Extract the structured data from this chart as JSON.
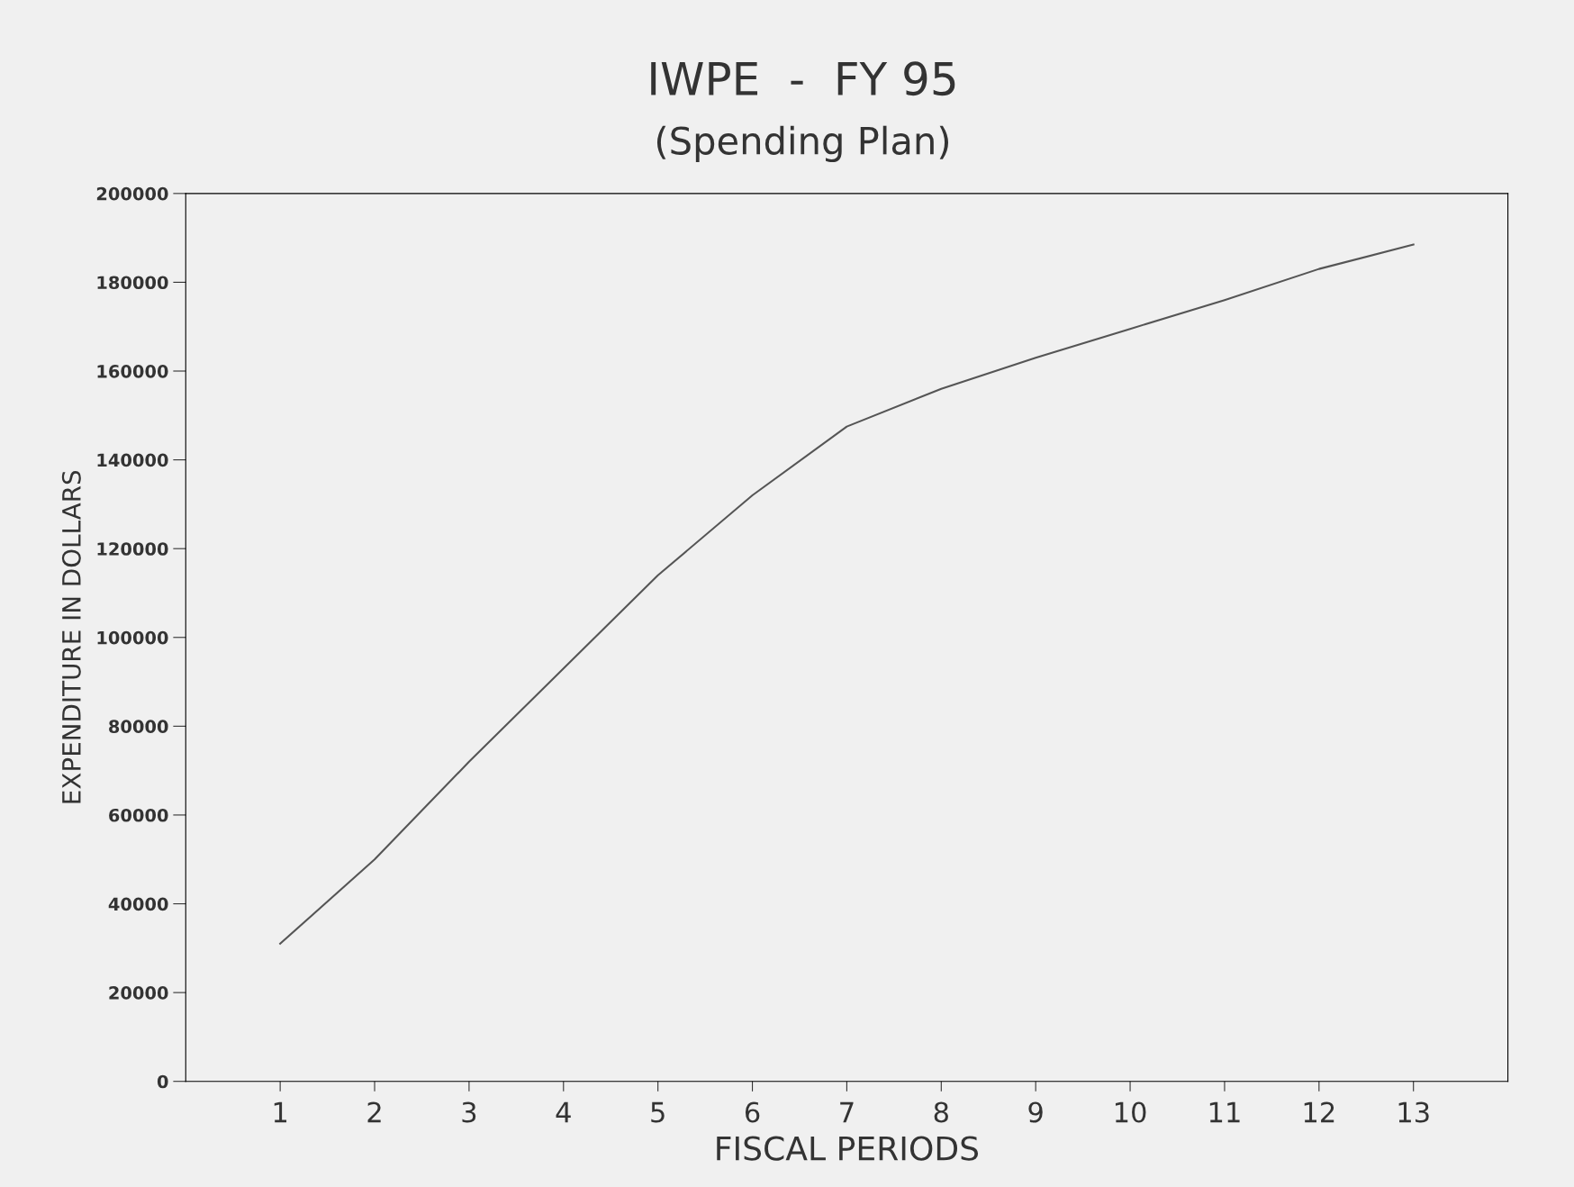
{
  "chart_data": {
    "type": "line",
    "title": "IWPE  -  FY 95",
    "subtitle": "(Spending Plan)",
    "xlabel": "FISCAL PERIODS",
    "ylabel": "EXPENDITURE IN DOLLARS",
    "x": [
      1,
      2,
      3,
      4,
      5,
      6,
      7,
      8,
      9,
      10,
      11,
      12,
      13
    ],
    "series": [
      {
        "color": "#555555",
        "values": [
          31000,
          50000,
          72000,
          93000,
          114000,
          132000,
          147500,
          156000,
          163000,
          169500,
          176000,
          183000,
          188500
        ]
      }
    ],
    "xlim": [
      0,
      14
    ],
    "xticks": [
      1,
      2,
      3,
      4,
      5,
      6,
      7,
      8,
      9,
      10,
      11,
      12,
      13
    ],
    "ylim": [
      0,
      200000
    ],
    "yticks": [
      0,
      20000,
      40000,
      60000,
      80000,
      100000,
      120000,
      140000,
      160000,
      180000,
      200000
    ],
    "grid": false,
    "legend": false,
    "marker": "none",
    "line_style": "solid"
  }
}
